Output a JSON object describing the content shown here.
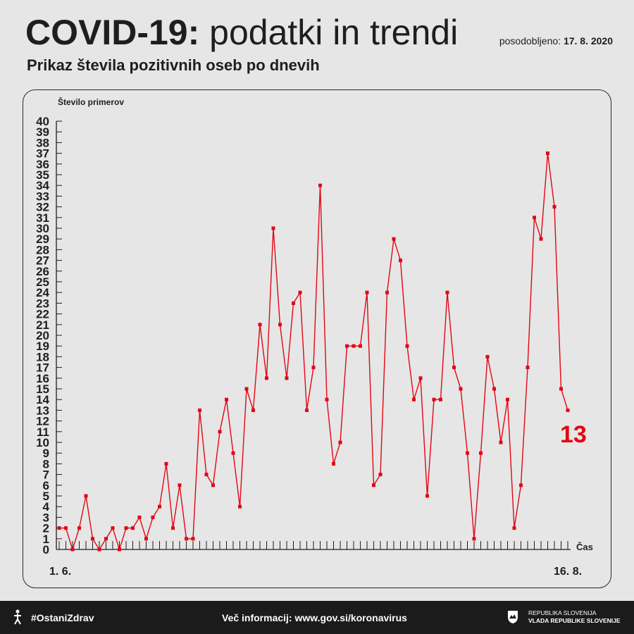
{
  "header": {
    "title_bold": "COVID-19:",
    "title_light": "podatki in trendi",
    "updated_label": "posodobljeno:",
    "updated_date": "17. 8. 2020",
    "subtitle": "Prikaz števila pozitivnih oseb po dnevih"
  },
  "chart_data": {
    "type": "line",
    "ylabel": "Število primerov",
    "xlabel": "Čas",
    "ylim": [
      0,
      40
    ],
    "y_ticks": [
      0,
      1,
      2,
      3,
      4,
      5,
      6,
      7,
      8,
      9,
      10,
      11,
      12,
      13,
      14,
      15,
      16,
      17,
      18,
      19,
      20,
      21,
      22,
      23,
      24,
      25,
      26,
      27,
      28,
      29,
      30,
      31,
      32,
      33,
      34,
      35,
      36,
      37,
      38,
      39,
      40
    ],
    "x_start_label": "1. 6.",
    "x_end_label": "16. 8.",
    "last_value_label": "13",
    "color": "#e30613",
    "series": [
      {
        "values": [
          2,
          2,
          0,
          2,
          5,
          1,
          0,
          1,
          2,
          0,
          2,
          2,
          3,
          1,
          3,
          4,
          8,
          2,
          6,
          1,
          1,
          13,
          7,
          6,
          11,
          14,
          9,
          4,
          15,
          13,
          21,
          16,
          30,
          21,
          16,
          23,
          24,
          13,
          17,
          34,
          14,
          8,
          10,
          19,
          19,
          19,
          24,
          6,
          7,
          24,
          29,
          27,
          19,
          14,
          16,
          5,
          14,
          14,
          24,
          17,
          15,
          9,
          1,
          9,
          18,
          15,
          10,
          14,
          2,
          6,
          17,
          31,
          29,
          37,
          32,
          15,
          13
        ]
      }
    ]
  },
  "footer": {
    "hashtag": "#OstaniZdrav",
    "more_info": "Več informacij: www.gov.si/koronavirus",
    "gov_line1": "REPUBLIKA SLOVENIJA",
    "gov_line2": "VLADA REPUBLIKE SLOVENIJE"
  }
}
